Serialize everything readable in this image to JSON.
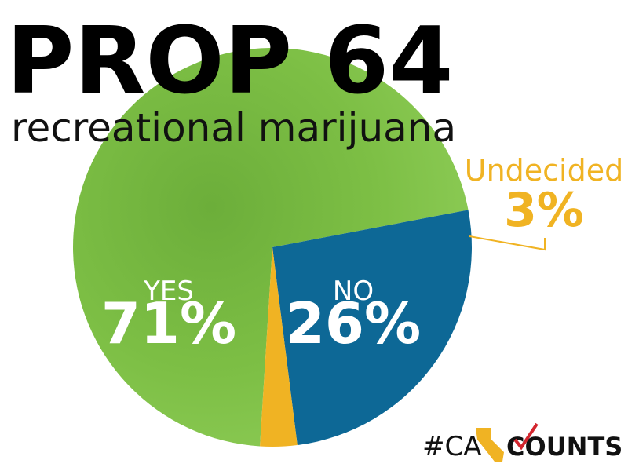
{
  "chart_data": {
    "type": "pie",
    "title": "PROP 64",
    "subtitle": "recreational marijuana",
    "categories": [
      "YES",
      "NO",
      "Undecided"
    ],
    "values": [
      71,
      26,
      3
    ],
    "value_labels": [
      "71%",
      "26%",
      "3%"
    ],
    "colors": [
      "#7dbf45",
      "#0d6896",
      "#f0b323"
    ]
  },
  "logo": {
    "prefix": "#CA",
    "suffix": "COUNTS"
  }
}
